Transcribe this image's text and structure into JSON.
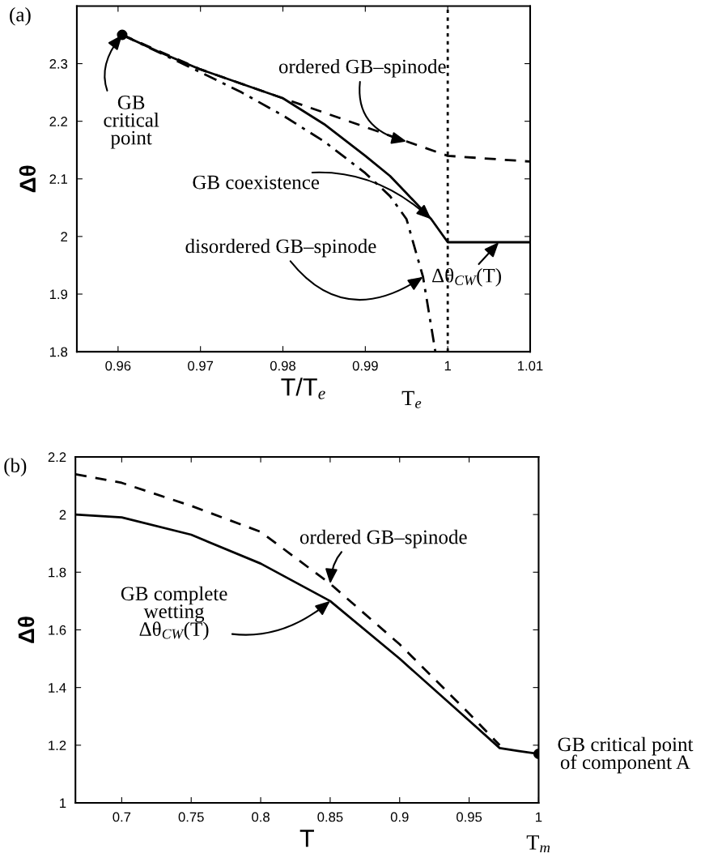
{
  "chart_data": [
    {
      "type": "line",
      "xlabel": "T/T$_{e}$",
      "ylabel": "Δθ",
      "xlim": [
        0.955,
        1.01
      ],
      "ylim": [
        1.8,
        2.4
      ],
      "xticks": [
        0.96,
        0.97,
        0.98,
        0.99,
        1,
        1.01
      ],
      "yticks": [
        1.8,
        1.9,
        2,
        2.1,
        2.2,
        2.3
      ],
      "grid": false,
      "legend": false,
      "series": [
        {
          "line_style": "solid",
          "marker": "none",
          "color": "#000000",
          "x": [
            0.9605,
            0.965,
            0.97,
            0.975,
            0.98,
            0.985,
            0.99,
            0.993,
            0.995,
            0.998,
            1.0,
            1.0,
            1.01
          ],
          "values": [
            2.35,
            2.32,
            2.29,
            2.265,
            2.24,
            2.195,
            2.14,
            2.105,
            2.075,
            2.03,
            1.99,
            1.99,
            1.99
          ]
        },
        {
          "line_style": "dashed",
          "marker": "none",
          "color": "#000000",
          "x": [
            0.9605,
            0.97,
            0.98,
            0.99,
            0.995,
            1.0,
            1.01
          ],
          "values": [
            2.35,
            2.29,
            2.24,
            2.19,
            2.165,
            2.14,
            2.13
          ]
        },
        {
          "line_style": "dashdot",
          "marker": "none",
          "color": "#000000",
          "x": [
            0.9605,
            0.97,
            0.975,
            0.98,
            0.985,
            0.99,
            0.993,
            0.995,
            0.997,
            0.9985
          ],
          "values": [
            2.35,
            2.285,
            2.25,
            2.21,
            2.165,
            2.11,
            2.07,
            2.03,
            1.93,
            1.8
          ]
        },
        {
          "type": "scatter",
          "marker": "circle",
          "color": "#000000",
          "x": [
            0.9605
          ],
          "values": [
            2.35
          ]
        }
      ],
      "ref_lines": [
        {
          "axis": "x",
          "value": 1,
          "line_style": "dotted",
          "color": "#000000"
        }
      ],
      "annotations": [
        "(a)",
        {
          "text": "GB\ncritical\npoint",
          "x": 0.9605,
          "y": 2.35
        },
        {
          "text": "ordered GB–spinode",
          "x": 0.995,
          "y": 2.165
        },
        {
          "text": "GB coexistence",
          "x": 0.998,
          "y": 2.03
        },
        {
          "text": "disordered GB–spinode",
          "x": 0.997,
          "y": 1.93
        },
        {
          "text": "Δθ$_{CW}$(T)",
          "x": 1.0062,
          "y": 1.99
        },
        "T$_{e}$"
      ]
    },
    {
      "type": "line",
      "xlabel": "T",
      "ylabel": "Δθ",
      "xlim": [
        0.6667,
        1
      ],
      "ylim": [
        1,
        2.2
      ],
      "xticks": [
        0.7,
        0.75,
        0.8,
        0.85,
        0.9,
        0.95,
        1
      ],
      "yticks": [
        1,
        1.2,
        1.4,
        1.6,
        1.8,
        2,
        2.2
      ],
      "grid": false,
      "legend": false,
      "series": [
        {
          "line_style": "solid",
          "marker": "none",
          "color": "#000000",
          "x": [
            0.6667,
            0.7,
            0.75,
            0.8,
            0.85,
            0.9,
            0.95,
            0.972,
            0.985,
            1.0
          ],
          "values": [
            2.0,
            1.99,
            1.93,
            1.83,
            1.7,
            1.5,
            1.285,
            1.19,
            1.18,
            1.17
          ]
        },
        {
          "line_style": "dashed",
          "marker": "none",
          "color": "#000000",
          "x": [
            0.6667,
            0.7,
            0.75,
            0.8,
            0.85,
            0.9,
            0.95,
            0.972
          ],
          "values": [
            2.14,
            2.11,
            2.03,
            1.94,
            1.76,
            1.55,
            1.31,
            1.2
          ]
        },
        {
          "type": "scatter",
          "marker": "circle",
          "color": "#000000",
          "x": [
            1.0
          ],
          "values": [
            1.17
          ]
        }
      ],
      "annotations": [
        "(b)",
        {
          "text": "GB complete\nwetting\nΔθ$_{CW}$(T)",
          "x": 0.85,
          "y": 1.7
        },
        {
          "text": "ordered GB–spinode",
          "x": 0.85,
          "y": 1.76
        },
        {
          "text": "GB critical point\nof component A",
          "x": 1.0,
          "y": 1.17
        },
        "T$_{m}$"
      ]
    }
  ]
}
